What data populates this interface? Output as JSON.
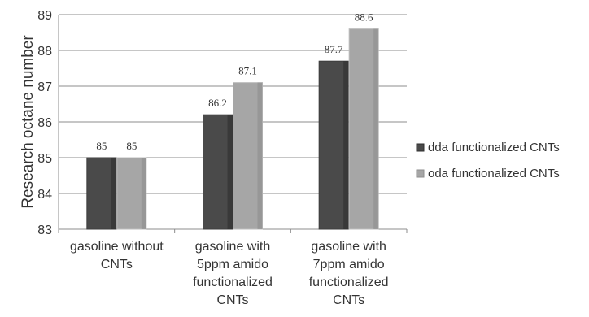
{
  "chart_data": {
    "type": "bar",
    "title": "",
    "ylabel": "Research octane number",
    "xlabel": "",
    "ylim": [
      83,
      89
    ],
    "yticks": [
      83,
      84,
      85,
      86,
      87,
      88,
      89
    ],
    "grid": true,
    "legend_position": "right",
    "categories": [
      [
        "gasoline without",
        "CNTs"
      ],
      [
        "gasoline with",
        "5ppm amido",
        "functionalized",
        "CNTs"
      ],
      [
        "gasoline with",
        "7ppm amido",
        "functionalized",
        "CNTs"
      ]
    ],
    "series": [
      {
        "name": "dda functionalized CNTs",
        "values": [
          85,
          86.2,
          87.7
        ],
        "labels": [
          "85",
          "86.2",
          "87.7"
        ],
        "color": "#4a4a4a"
      },
      {
        "name": "oda functionalized CNTs",
        "values": [
          85,
          87.1,
          88.6
        ],
        "labels": [
          "85",
          "87.1",
          "88.6"
        ],
        "color": "#a6a6a6"
      }
    ]
  }
}
